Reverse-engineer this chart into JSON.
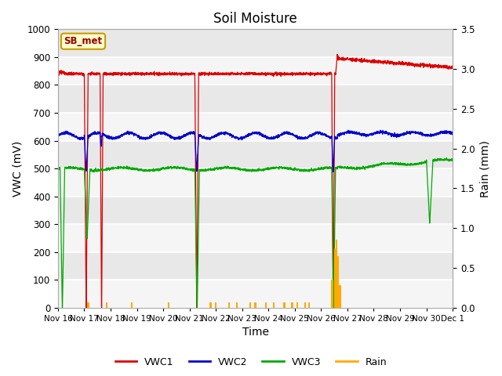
{
  "title": "Soil Moisture",
  "ylabel_left": "VWC (mV)",
  "ylabel_right": "Rain (mm)",
  "xlabel": "Time",
  "ylim_left": [
    0,
    1000
  ],
  "ylim_right": [
    0.0,
    3.5
  ],
  "yticks_left": [
    0,
    100,
    200,
    300,
    400,
    500,
    600,
    700,
    800,
    900,
    1000
  ],
  "yticks_right": [
    0.0,
    0.5,
    1.0,
    1.5,
    2.0,
    2.5,
    3.0,
    3.5
  ],
  "station_label": "SB_met",
  "background_color": "#e8e8e8",
  "band_color1": "#e8e8e8",
  "band_color2": "#f5f5f5",
  "colors": {
    "VWC1": "#dd0000",
    "VWC2": "#0000cc",
    "VWC3": "#00aa00",
    "Rain": "#ffaa00"
  },
  "title_fontsize": 12,
  "axis_label_fontsize": 10,
  "tick_fontsize": 8.5
}
